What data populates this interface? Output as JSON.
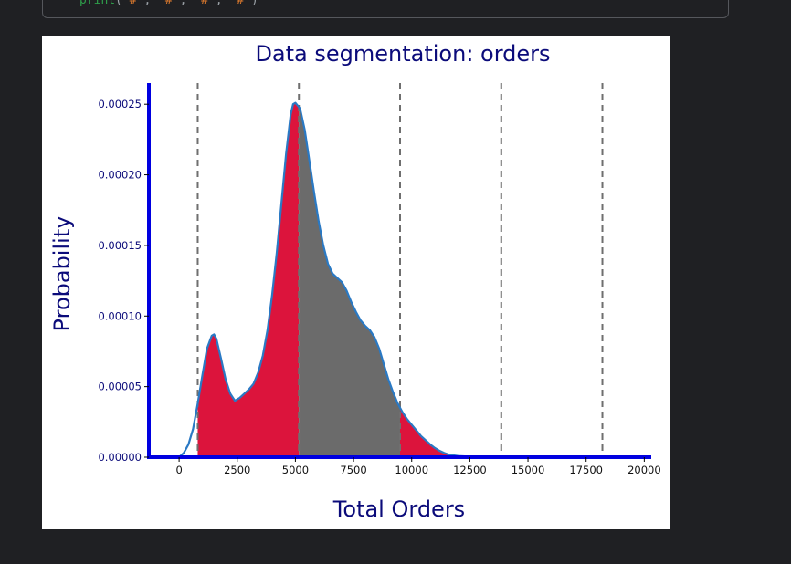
{
  "code_cell": {
    "fn": "print",
    "args": [
      "'#'",
      "'#'",
      "'#'",
      "'#'"
    ]
  },
  "chart_data": {
    "type": "area",
    "title": "Data segmentation: orders",
    "xlabel": "Total Orders",
    "ylabel": "Probability",
    "xlim": [
      -1300,
      20300
    ],
    "ylim": [
      0,
      0.000265
    ],
    "x_ticks": [
      0,
      2500,
      5000,
      7500,
      10000,
      12500,
      15000,
      17500,
      20000
    ],
    "x_tick_labels": [
      "0",
      "2500",
      "5000",
      "7500",
      "10000",
      "12500",
      "15000",
      "17500",
      "20000"
    ],
    "y_ticks": [
      0,
      5e-05,
      0.0001,
      0.00015,
      0.0002,
      0.00025
    ],
    "y_tick_labels": [
      "0.00000",
      "0.00005",
      "0.00010",
      "0.00015",
      "0.00020",
      "0.00025"
    ],
    "grid": false,
    "density": {
      "x": [
        -1300,
        0,
        200,
        400,
        600,
        800,
        1000,
        1200,
        1400,
        1500,
        1600,
        1800,
        2000,
        2200,
        2400,
        2600,
        2800,
        3000,
        3200,
        3400,
        3600,
        3800,
        4000,
        4200,
        4400,
        4600,
        4800,
        4900,
        5000,
        5200,
        5400,
        5600,
        5800,
        6000,
        6200,
        6400,
        6600,
        6800,
        7000,
        7200,
        7400,
        7600,
        7800,
        8000,
        8200,
        8400,
        8600,
        8800,
        9000,
        9200,
        9400,
        9600,
        9800,
        10000,
        10200,
        10400,
        10600,
        10800,
        11000,
        11200,
        11400,
        11600,
        12000,
        12500,
        13000,
        14000,
        16000,
        18000,
        20000
      ],
      "y": [
        0,
        0,
        3e-06,
        9e-06,
        2e-05,
        3.8e-05,
        5.8e-05,
        7.7e-05,
        8.6e-05,
        8.7e-05,
        8.4e-05,
        7e-05,
        5.5e-05,
        4.5e-05,
        4e-05,
        4.2e-05,
        4.5e-05,
        4.8e-05,
        5.2e-05,
        6e-05,
        7.2e-05,
        9e-05,
        0.000115,
        0.000145,
        0.00018,
        0.000215,
        0.000243,
        0.00025,
        0.000251,
        0.000247,
        0.000232,
        0.00021,
        0.000188,
        0.000167,
        0.00015,
        0.000137,
        0.00013,
        0.000127,
        0.000124,
        0.000118,
        0.00011,
        0.000103,
        9.7e-05,
        9.3e-05,
        9e-05,
        8.5e-05,
        7.7e-05,
        6.6e-05,
        5.5e-05,
        4.6e-05,
        3.8e-05,
        3.2e-05,
        2.7e-05,
        2.3e-05,
        1.9e-05,
        1.5e-05,
        1.2e-05,
        9e-06,
        6.5e-06,
        4.5e-06,
        3e-06,
        1.8e-06,
        8e-07,
        4e-07,
        2e-07,
        1e-07,
        5e-08,
        0,
        0
      ],
      "line_color": "#2a79c4"
    },
    "segments": [
      {
        "x_start": 800,
        "x_end": 5150,
        "color": "#dc143c"
      },
      {
        "x_start": 5150,
        "x_end": 9500,
        "color": "#6b6b6b"
      },
      {
        "x_start": 9500,
        "x_end": 13850,
        "color": "#dc143c"
      }
    ],
    "dividers_x": [
      800,
      5150,
      9500,
      13850,
      18200
    ],
    "axis_color": "#0000e0",
    "label_color": "#0b0b7a"
  }
}
